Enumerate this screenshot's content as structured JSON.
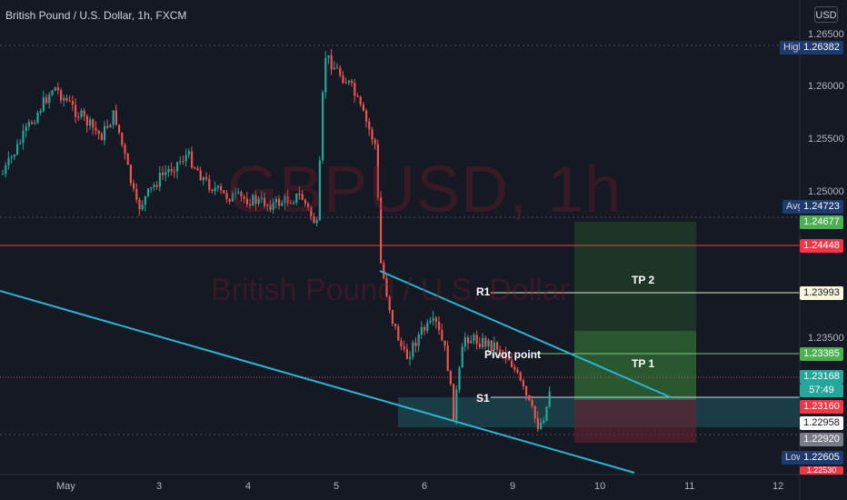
{
  "header": {
    "title": "British Pound / U.S. Dollar, 1h, FXCM",
    "currency_button": "USD"
  },
  "watermark": {
    "symbol": "GBPUSD, 1h",
    "description": "British Pound / U.S. Dollar"
  },
  "y_axis": {
    "ticks": [
      "1.26500",
      "1.26000",
      "1.25500",
      "1.25000",
      "1.23500"
    ]
  },
  "price_tags": {
    "high_label": "High",
    "high_value": "1.26382",
    "avg_label": "Avg",
    "avg_value": "1.24723",
    "tp2_level": "1.24677",
    "red_line": "1.24448",
    "r1": "1.23993",
    "tp1_level": "1.23385",
    "current_price": "1.23168",
    "countdown": "57:49",
    "stop_entry": "1.23160",
    "bid_line": "1.22958",
    "s1_level": "1.22920",
    "low_label": "Low",
    "low_value": "1.22605",
    "bottom_cut": "1.22530"
  },
  "annotations": {
    "tp2": "TP 2",
    "tp1": "TP 1",
    "r1": "R1",
    "pivot": "Pivot point",
    "s1": "S1"
  },
  "x_axis": {
    "ticks": [
      "May",
      "3",
      "4",
      "5",
      "6",
      "9",
      "10",
      "11",
      "12"
    ]
  },
  "colors": {
    "background": "#151924",
    "up_candle": "#26a69a",
    "down_candle": "#ef5350",
    "trendline": "#29b6d3",
    "red_line": "#f23645",
    "target_zone": "#2e6b2e",
    "stop_zone": "#6b2230",
    "support_zone": "#1f5a5e"
  }
}
